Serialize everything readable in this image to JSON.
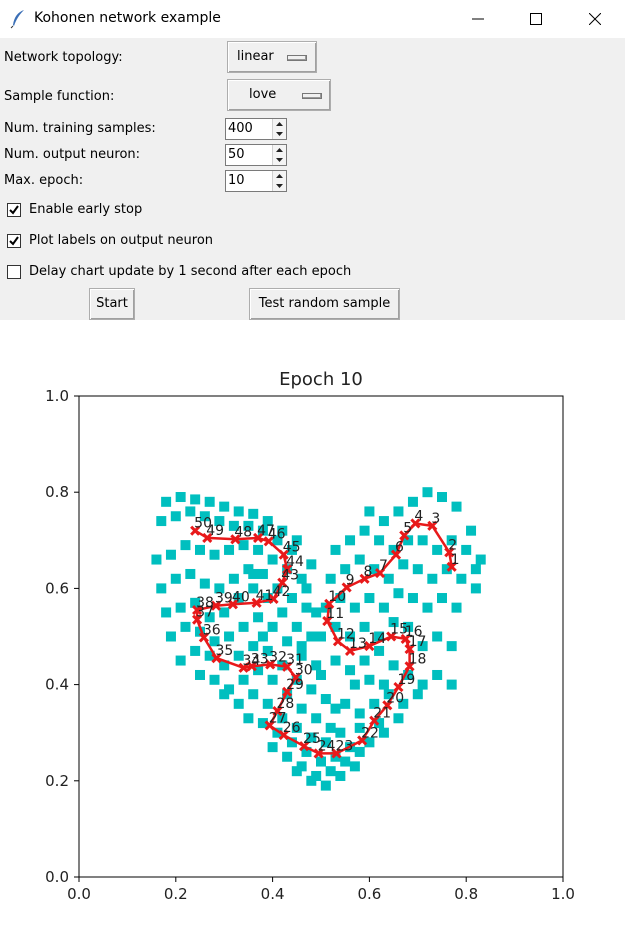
{
  "window": {
    "title": "Kohonen network example"
  },
  "controls": {
    "topology_label": "Network topology:",
    "topology_value": "linear",
    "sample_label": "Sample function:",
    "sample_value": "love",
    "train_label": "Num. training samples:",
    "train_value": "400",
    "output_label": "Num. output neuron:",
    "output_value": "50",
    "epoch_label": "Max. epoch:",
    "epoch_value": "10",
    "early_stop_label": "Enable early stop",
    "early_stop_checked": true,
    "plot_labels_label": "Plot labels on output neuron",
    "plot_labels_checked": true,
    "delay_label": "Delay chart update by 1 second after each epoch",
    "delay_checked": false,
    "start_label": "Start",
    "test_label": "Test random sample"
  },
  "chart_data": {
    "type": "scatter",
    "title": "Epoch 10",
    "xlim": [
      0.0,
      1.0
    ],
    "ylim": [
      0.0,
      1.0
    ],
    "xticks": [
      "0.0",
      "0.2",
      "0.4",
      "0.6",
      "0.8",
      "1.0"
    ],
    "yticks": [
      "0.0",
      "0.2",
      "0.4",
      "0.6",
      "0.8",
      "1.0"
    ],
    "sample_color": "#00bfbf",
    "neuron_color": "#e8191a",
    "neuron_labels": [
      "1",
      "2",
      "3",
      "4",
      "5",
      "6",
      "7",
      "8",
      "9",
      "10",
      "11",
      "12",
      "13",
      "14",
      "15",
      "16",
      "17",
      "18",
      "19",
      "20",
      "21",
      "22",
      "23",
      "24",
      "25",
      "26",
      "27",
      "28",
      "29",
      "30",
      "31",
      "32",
      "33",
      "34",
      "35",
      "36",
      "37",
      "38",
      "39",
      "40",
      "41",
      "42",
      "43",
      "44",
      "45",
      "46",
      "47",
      "48",
      "49",
      "50"
    ],
    "neurons": [
      [
        0.77,
        0.645
      ],
      [
        0.765,
        0.675
      ],
      [
        0.73,
        0.73
      ],
      [
        0.695,
        0.735
      ],
      [
        0.672,
        0.71
      ],
      [
        0.655,
        0.67
      ],
      [
        0.622,
        0.632
      ],
      [
        0.59,
        0.62
      ],
      [
        0.553,
        0.602
      ],
      [
        0.517,
        0.568
      ],
      [
        0.513,
        0.532
      ],
      [
        0.535,
        0.49
      ],
      [
        0.56,
        0.47
      ],
      [
        0.6,
        0.48
      ],
      [
        0.645,
        0.5
      ],
      [
        0.675,
        0.495
      ],
      [
        0.683,
        0.474
      ],
      [
        0.683,
        0.438
      ],
      [
        0.66,
        0.395
      ],
      [
        0.637,
        0.357
      ],
      [
        0.61,
        0.325
      ],
      [
        0.585,
        0.284
      ],
      [
        0.532,
        0.257
      ],
      [
        0.495,
        0.257
      ],
      [
        0.465,
        0.272
      ],
      [
        0.423,
        0.295
      ],
      [
        0.394,
        0.315
      ],
      [
        0.41,
        0.345
      ],
      [
        0.43,
        0.385
      ],
      [
        0.448,
        0.415
      ],
      [
        0.43,
        0.437
      ],
      [
        0.395,
        0.442
      ],
      [
        0.357,
        0.438
      ],
      [
        0.34,
        0.435
      ],
      [
        0.284,
        0.455
      ],
      [
        0.258,
        0.498
      ],
      [
        0.244,
        0.535
      ],
      [
        0.244,
        0.555
      ],
      [
        0.283,
        0.564
      ],
      [
        0.318,
        0.567
      ],
      [
        0.367,
        0.57
      ],
      [
        0.402,
        0.578
      ],
      [
        0.42,
        0.612
      ],
      [
        0.43,
        0.64
      ],
      [
        0.423,
        0.67
      ],
      [
        0.392,
        0.698
      ],
      [
        0.37,
        0.705
      ],
      [
        0.323,
        0.702
      ],
      [
        0.265,
        0.705
      ],
      [
        0.24,
        0.72
      ]
    ],
    "samples": [
      [
        0.18,
        0.78
      ],
      [
        0.21,
        0.79
      ],
      [
        0.24,
        0.785
      ],
      [
        0.27,
        0.78
      ],
      [
        0.3,
        0.77
      ],
      [
        0.33,
        0.76
      ],
      [
        0.36,
        0.755
      ],
      [
        0.39,
        0.74
      ],
      [
        0.42,
        0.72
      ],
      [
        0.45,
        0.7
      ],
      [
        0.17,
        0.74
      ],
      [
        0.2,
        0.75
      ],
      [
        0.23,
        0.76
      ],
      [
        0.26,
        0.75
      ],
      [
        0.29,
        0.74
      ],
      [
        0.32,
        0.73
      ],
      [
        0.35,
        0.73
      ],
      [
        0.38,
        0.72
      ],
      [
        0.41,
        0.7
      ],
      [
        0.44,
        0.68
      ],
      [
        0.16,
        0.66
      ],
      [
        0.19,
        0.67
      ],
      [
        0.22,
        0.69
      ],
      [
        0.25,
        0.68
      ],
      [
        0.28,
        0.67
      ],
      [
        0.31,
        0.68
      ],
      [
        0.34,
        0.69
      ],
      [
        0.37,
        0.68
      ],
      [
        0.4,
        0.66
      ],
      [
        0.43,
        0.64
      ],
      [
        0.46,
        0.62
      ],
      [
        0.17,
        0.6
      ],
      [
        0.2,
        0.62
      ],
      [
        0.23,
        0.63
      ],
      [
        0.26,
        0.61
      ],
      [
        0.29,
        0.6
      ],
      [
        0.32,
        0.62
      ],
      [
        0.35,
        0.64
      ],
      [
        0.38,
        0.63
      ],
      [
        0.41,
        0.6
      ],
      [
        0.44,
        0.58
      ],
      [
        0.47,
        0.56
      ],
      [
        0.18,
        0.55
      ],
      [
        0.21,
        0.56
      ],
      [
        0.24,
        0.57
      ],
      [
        0.27,
        0.54
      ],
      [
        0.3,
        0.55
      ],
      [
        0.33,
        0.58
      ],
      [
        0.36,
        0.6
      ],
      [
        0.39,
        0.58
      ],
      [
        0.42,
        0.55
      ],
      [
        0.45,
        0.52
      ],
      [
        0.48,
        0.5
      ],
      [
        0.19,
        0.5
      ],
      [
        0.22,
        0.52
      ],
      [
        0.25,
        0.51
      ],
      [
        0.28,
        0.49
      ],
      [
        0.31,
        0.5
      ],
      [
        0.34,
        0.52
      ],
      [
        0.37,
        0.54
      ],
      [
        0.4,
        0.52
      ],
      [
        0.43,
        0.49
      ],
      [
        0.46,
        0.46
      ],
      [
        0.49,
        0.44
      ],
      [
        0.21,
        0.45
      ],
      [
        0.24,
        0.47
      ],
      [
        0.27,
        0.46
      ],
      [
        0.3,
        0.44
      ],
      [
        0.33,
        0.46
      ],
      [
        0.36,
        0.48
      ],
      [
        0.39,
        0.47
      ],
      [
        0.42,
        0.44
      ],
      [
        0.45,
        0.41
      ],
      [
        0.48,
        0.39
      ],
      [
        0.51,
        0.37
      ],
      [
        0.25,
        0.42
      ],
      [
        0.28,
        0.41
      ],
      [
        0.31,
        0.39
      ],
      [
        0.34,
        0.41
      ],
      [
        0.37,
        0.43
      ],
      [
        0.4,
        0.41
      ],
      [
        0.43,
        0.38
      ],
      [
        0.46,
        0.35
      ],
      [
        0.49,
        0.33
      ],
      [
        0.52,
        0.31
      ],
      [
        0.3,
        0.38
      ],
      [
        0.33,
        0.36
      ],
      [
        0.36,
        0.38
      ],
      [
        0.39,
        0.36
      ],
      [
        0.42,
        0.33
      ],
      [
        0.45,
        0.31
      ],
      [
        0.48,
        0.29
      ],
      [
        0.51,
        0.28
      ],
      [
        0.54,
        0.3
      ],
      [
        0.35,
        0.33
      ],
      [
        0.38,
        0.32
      ],
      [
        0.41,
        0.3
      ],
      [
        0.44,
        0.28
      ],
      [
        0.47,
        0.26
      ],
      [
        0.5,
        0.24
      ],
      [
        0.53,
        0.25
      ],
      [
        0.56,
        0.27
      ],
      [
        0.4,
        0.27
      ],
      [
        0.43,
        0.25
      ],
      [
        0.46,
        0.23
      ],
      [
        0.49,
        0.21
      ],
      [
        0.52,
        0.22
      ],
      [
        0.55,
        0.24
      ],
      [
        0.58,
        0.26
      ],
      [
        0.45,
        0.22
      ],
      [
        0.48,
        0.2
      ],
      [
        0.51,
        0.19
      ],
      [
        0.54,
        0.21
      ],
      [
        0.57,
        0.23
      ],
      [
        0.6,
        0.28
      ],
      [
        0.63,
        0.3
      ],
      [
        0.5,
        0.42
      ],
      [
        0.53,
        0.45
      ],
      [
        0.56,
        0.43
      ],
      [
        0.59,
        0.45
      ],
      [
        0.62,
        0.47
      ],
      [
        0.65,
        0.44
      ],
      [
        0.68,
        0.42
      ],
      [
        0.71,
        0.4
      ],
      [
        0.74,
        0.42
      ],
      [
        0.77,
        0.4
      ],
      [
        0.5,
        0.5
      ],
      [
        0.53,
        0.52
      ],
      [
        0.56,
        0.5
      ],
      [
        0.59,
        0.52
      ],
      [
        0.62,
        0.5
      ],
      [
        0.65,
        0.53
      ],
      [
        0.68,
        0.52
      ],
      [
        0.71,
        0.48
      ],
      [
        0.74,
        0.5
      ],
      [
        0.77,
        0.48
      ],
      [
        0.51,
        0.56
      ],
      [
        0.54,
        0.58
      ],
      [
        0.57,
        0.56
      ],
      [
        0.6,
        0.58
      ],
      [
        0.63,
        0.56
      ],
      [
        0.66,
        0.59
      ],
      [
        0.69,
        0.58
      ],
      [
        0.72,
        0.56
      ],
      [
        0.75,
        0.58
      ],
      [
        0.78,
        0.56
      ],
      [
        0.52,
        0.62
      ],
      [
        0.55,
        0.64
      ],
      [
        0.58,
        0.66
      ],
      [
        0.61,
        0.64
      ],
      [
        0.64,
        0.62
      ],
      [
        0.67,
        0.65
      ],
      [
        0.7,
        0.64
      ],
      [
        0.73,
        0.62
      ],
      [
        0.76,
        0.64
      ],
      [
        0.79,
        0.62
      ],
      [
        0.82,
        0.6
      ],
      [
        0.53,
        0.68
      ],
      [
        0.56,
        0.7
      ],
      [
        0.59,
        0.72
      ],
      [
        0.62,
        0.7
      ],
      [
        0.65,
        0.68
      ],
      [
        0.68,
        0.7
      ],
      [
        0.71,
        0.7
      ],
      [
        0.74,
        0.68
      ],
      [
        0.77,
        0.7
      ],
      [
        0.8,
        0.68
      ],
      [
        0.83,
        0.66
      ],
      [
        0.6,
        0.76
      ],
      [
        0.63,
        0.74
      ],
      [
        0.66,
        0.76
      ],
      [
        0.69,
        0.78
      ],
      [
        0.72,
        0.8
      ],
      [
        0.75,
        0.79
      ],
      [
        0.78,
        0.77
      ],
      [
        0.81,
        0.72
      ],
      [
        0.82,
        0.64
      ],
      [
        0.55,
        0.36
      ],
      [
        0.58,
        0.34
      ],
      [
        0.61,
        0.36
      ],
      [
        0.64,
        0.38
      ],
      [
        0.67,
        0.36
      ],
      [
        0.7,
        0.38
      ],
      [
        0.57,
        0.4
      ],
      [
        0.6,
        0.41
      ],
      [
        0.63,
        0.4
      ],
      [
        0.47,
        0.6
      ],
      [
        0.48,
        0.65
      ],
      [
        0.49,
        0.55
      ],
      [
        0.46,
        0.48
      ],
      [
        0.53,
        0.35
      ],
      [
        0.58,
        0.31
      ],
      [
        0.62,
        0.32
      ],
      [
        0.66,
        0.33
      ],
      [
        0.36,
        0.63
      ],
      [
        0.38,
        0.5
      ]
    ]
  }
}
